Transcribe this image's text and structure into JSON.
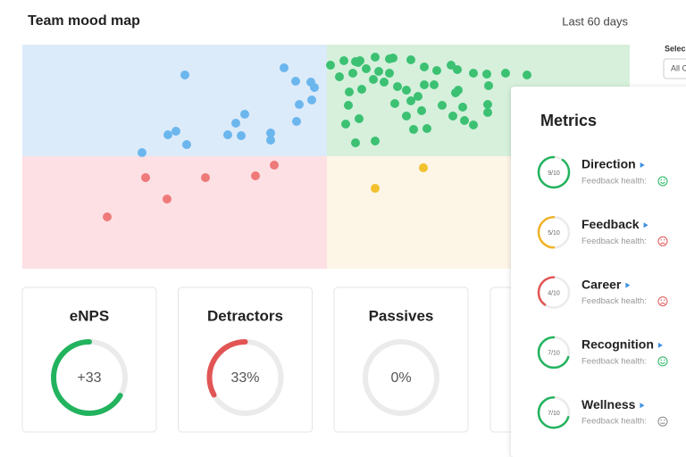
{
  "header": {
    "title": "Team mood map",
    "period": "Last 60 days",
    "select_label": "Selec",
    "select_value": "All C"
  },
  "cards": [
    {
      "title": "eNPS",
      "value": 33,
      "value_label": "+33",
      "range": [
        -100,
        100
      ],
      "color": "#22b35e"
    },
    {
      "title": "Detractors",
      "value": 33,
      "value_label": "33%",
      "range": [
        0,
        100
      ],
      "color": "#e25555"
    },
    {
      "title": "Passives",
      "value": 0,
      "value_label": "0%",
      "range": [
        0,
        100
      ],
      "color": "#f0c030"
    }
  ],
  "metrics": {
    "title": "Metrics",
    "score_max": 10,
    "items": [
      {
        "name": "Direction",
        "score": 9,
        "score_label": "9/10",
        "health_label": "Feedback health:",
        "health": "good",
        "color": "#22b35e"
      },
      {
        "name": "Feedback",
        "score": 5,
        "score_label": "5/10",
        "health_label": "Feedback health:",
        "health": "bad",
        "color": "#f0b429"
      },
      {
        "name": "Career",
        "score": 4,
        "score_label": "4/10",
        "health_label": "Feedback health:",
        "health": "bad",
        "color": "#e25555"
      },
      {
        "name": "Recognition",
        "score": 7,
        "score_label": "7/10",
        "health_label": "Feedback health:",
        "health": "good",
        "color": "#22b35e"
      },
      {
        "name": "Wellness",
        "score": 7,
        "score_label": "7/10",
        "health_label": "Feedback health:",
        "health": "neutral",
        "color": "#22b35e"
      }
    ]
  }
}
